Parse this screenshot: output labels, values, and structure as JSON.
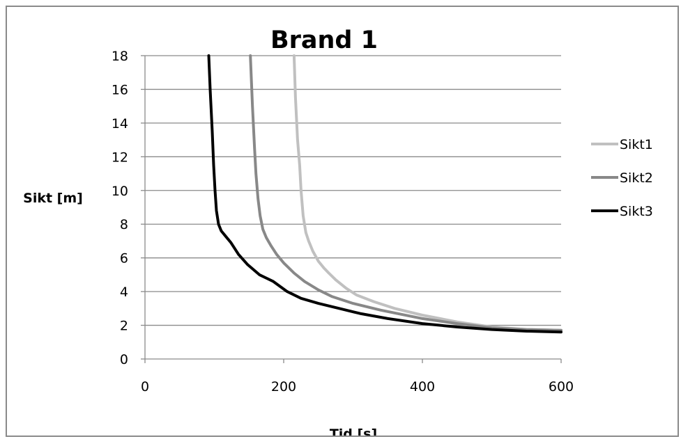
{
  "chart_data": {
    "type": "line",
    "title": "Brand 1",
    "xlabel": "Tid [s]",
    "ylabel": "Sikt [m]",
    "xlim": [
      0,
      600
    ],
    "ylim": [
      0,
      18
    ],
    "x_ticks": [
      0,
      200,
      400,
      600
    ],
    "y_ticks": [
      0,
      2,
      4,
      6,
      8,
      10,
      12,
      14,
      16,
      18
    ],
    "grid": "horizontal",
    "legend_position": "right",
    "series": [
      {
        "name": "Sikt1",
        "color": "#c0c0c0",
        "x": [
          215,
          217,
          220,
          223,
          225,
          228,
          232,
          236,
          242,
          250,
          258,
          265,
          275,
          290,
          305,
          330,
          360,
          400,
          450,
          500,
          550,
          600
        ],
        "y": [
          18,
          15.5,
          13,
          11.5,
          10,
          8.5,
          7.5,
          7,
          6.4,
          5.8,
          5.4,
          5.1,
          4.7,
          4.2,
          3.8,
          3.4,
          3.0,
          2.6,
          2.2,
          1.9,
          1.75,
          1.7
        ]
      },
      {
        "name": "Sikt2",
        "color": "#888888",
        "x": [
          152,
          155,
          158,
          160,
          163,
          166,
          170,
          175,
          182,
          190,
          200,
          215,
          230,
          250,
          270,
          300,
          340,
          400,
          450,
          500,
          550,
          600
        ],
        "y": [
          18,
          15,
          12.5,
          11,
          9.5,
          8.5,
          7.7,
          7.2,
          6.7,
          6.2,
          5.7,
          5.1,
          4.6,
          4.1,
          3.7,
          3.3,
          2.9,
          2.4,
          2.1,
          1.85,
          1.75,
          1.7
        ]
      },
      {
        "name": "Sikt3",
        "color": "#000000",
        "x": [
          92,
          94,
          97,
          99,
          101,
          103,
          106,
          110,
          116,
          124,
          135,
          148,
          165,
          185,
          205,
          225,
          250,
          280,
          310,
          350,
          400,
          450,
          500,
          550,
          600
        ],
        "y": [
          18,
          16,
          13.5,
          11.5,
          10,
          8.8,
          8,
          7.6,
          7.3,
          6.9,
          6.2,
          5.6,
          5.0,
          4.6,
          4.0,
          3.6,
          3.3,
          3.0,
          2.7,
          2.4,
          2.1,
          1.9,
          1.75,
          1.65,
          1.6
        ]
      }
    ]
  }
}
